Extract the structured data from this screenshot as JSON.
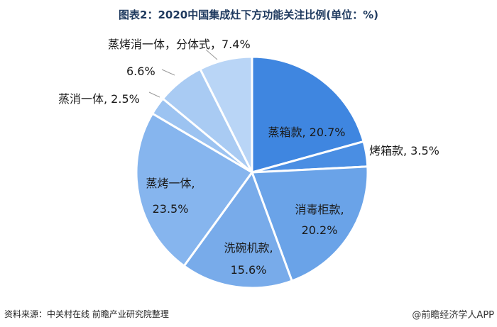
{
  "title": "图表2：2020中国集成灶下方功能关注比例(单位：%)",
  "source": "资料来源：中关村在线 前瞻产业研究院整理",
  "credit": "@前瞻经济学人APP",
  "chart_data": {
    "type": "pie",
    "unit": "%",
    "slices": [
      {
        "label": "蒸箱款",
        "value": 20.7,
        "display": "蒸箱款, 20.7%",
        "color": "#3f86e0"
      },
      {
        "label": "烤箱款",
        "value": 3.5,
        "display": "烤箱款, 3.5%",
        "color": "#4a8ee3"
      },
      {
        "label": "消毒柜款",
        "value": 20.2,
        "display": "消毒柜款, 20.2%",
        "color": "#6aa3e8"
      },
      {
        "label": "洗碗机款",
        "value": 15.6,
        "display": "洗碗机款, 15.6%",
        "color": "#78abea"
      },
      {
        "label": "蒸烤一体",
        "value": 23.5,
        "display": "蒸烤一体, 23.5%",
        "color": "#86b5ee"
      },
      {
        "label": "蒸消一体",
        "value": 2.5,
        "display": "蒸消一体, 2.5%",
        "color": "#9cc3f1"
      },
      {
        "label": "",
        "value": 6.6,
        "display": "6.6%",
        "color": "#a9cbf3"
      },
      {
        "label": "蒸烤消一体，分体式",
        "value": 7.4,
        "display": "蒸烤消一体，分体式，7.4%",
        "color": "#b9d5f6"
      }
    ]
  }
}
